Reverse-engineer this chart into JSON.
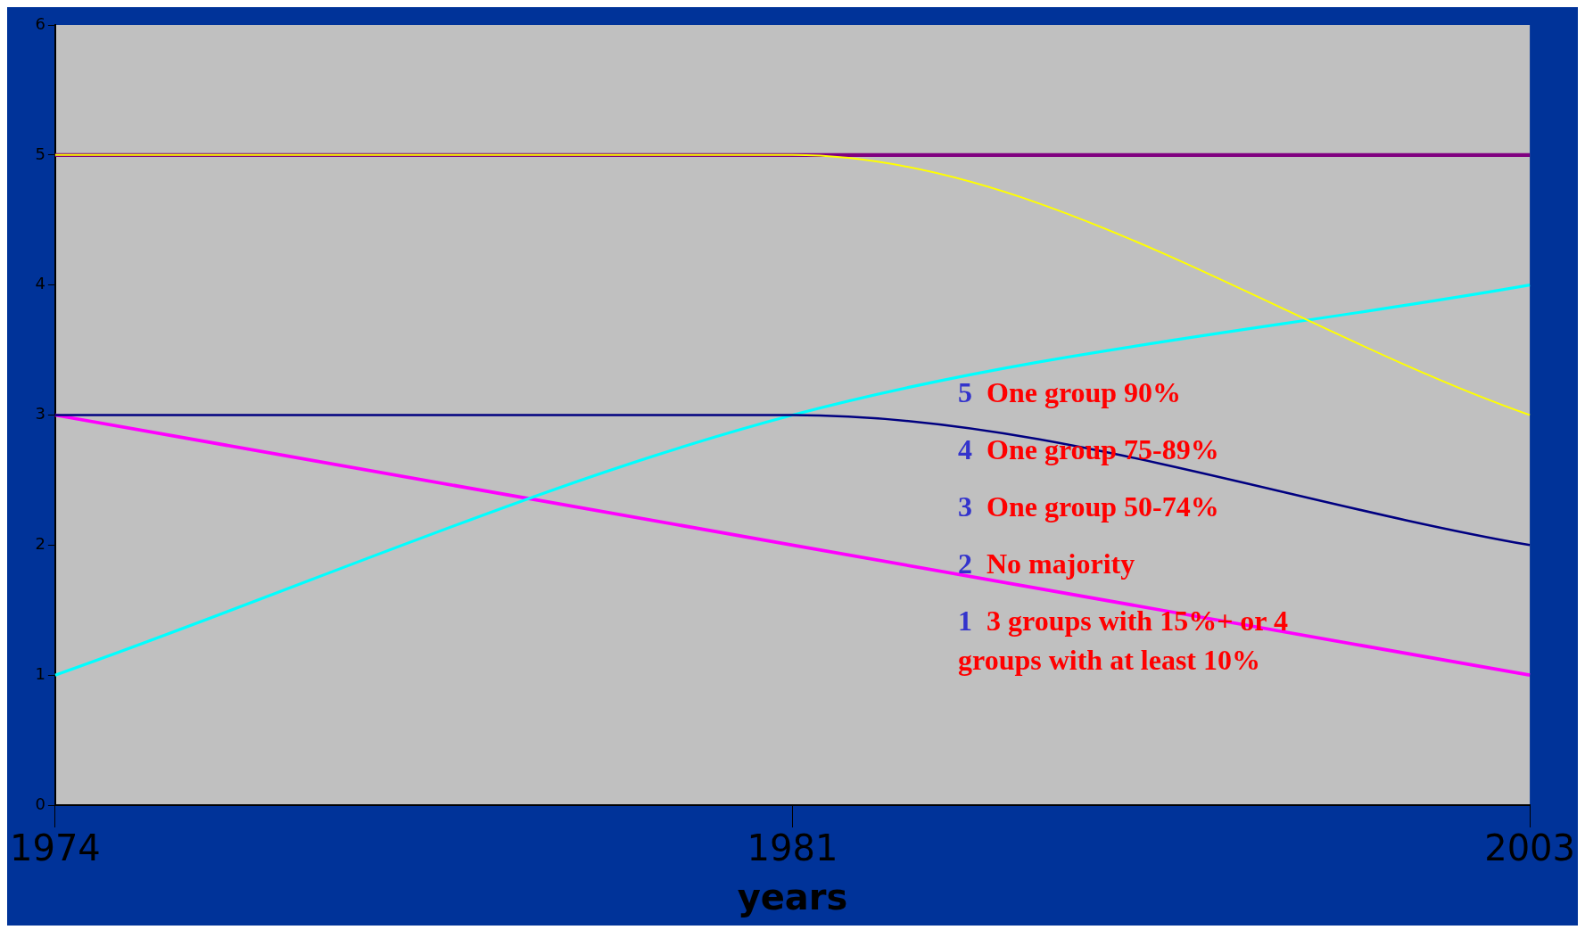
{
  "chart_data": {
    "type": "line",
    "xlabel": "years",
    "categories": [
      "1974",
      "1981",
      "2003"
    ],
    "series": [
      {
        "color": "#ffff00",
        "values": [
          5,
          5,
          3
        ]
      },
      {
        "color": "#000080",
        "values": [
          3,
          3,
          2
        ]
      },
      {
        "color": "#00ffff",
        "values": [
          1,
          3,
          4
        ]
      },
      {
        "color": "#ff00ff",
        "values": [
          3,
          2,
          1
        ]
      },
      {
        "color": "#800080",
        "values": [
          5,
          5,
          5
        ]
      }
    ],
    "ylim": [
      0,
      6
    ],
    "yticks": [
      0,
      1,
      2,
      3,
      4,
      5,
      6
    ],
    "grid": false,
    "legend": false,
    "marker": "none",
    "annotations": [
      "5  One group 90%",
      "4  One group 75-89%",
      "3  One group 50-74%",
      "2  No majority",
      "1  3 groups with 15%+ or 4 groups with at least 10%"
    ]
  }
}
